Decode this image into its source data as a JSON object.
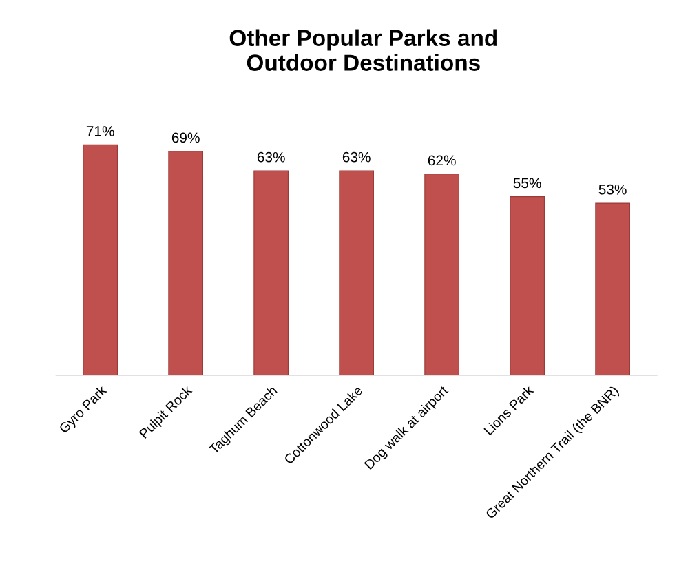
{
  "chart_data": {
    "type": "bar",
    "title": "Other Popular Parks and\nOutdoor Destinations",
    "categories": [
      "Gyro Park",
      "Pulpit Rock",
      "Taghum Beach",
      "Cottonwood Lake",
      "Dog walk at airport",
      "Lions Park",
      "Great Northern Trail (the BNR)"
    ],
    "values": [
      71,
      69,
      63,
      63,
      62,
      55,
      53
    ],
    "value_labels": [
      "71%",
      "69%",
      "63%",
      "63%",
      "62%",
      "55%",
      "53%"
    ],
    "color": "#c0504d",
    "grid": false,
    "legend": false
  }
}
